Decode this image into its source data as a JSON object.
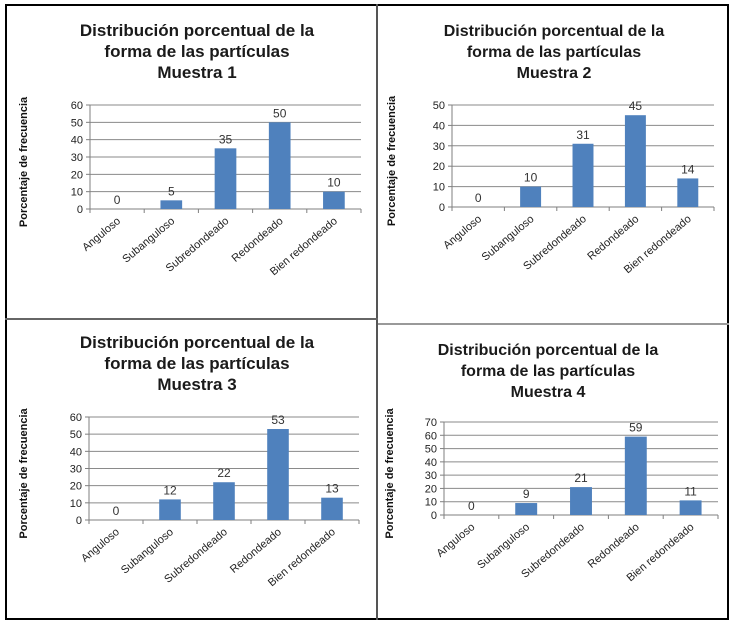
{
  "colors": {
    "bar": "#4f81bd",
    "grid": "#8a8a8a",
    "axis": "#7f7f7f"
  },
  "chart_data": [
    {
      "type": "bar",
      "title": [
        "Distribución porcentual de la",
        "forma de las partículas",
        "Muestra 1"
      ],
      "ylabel": "Porcentaje de frecuencia",
      "categories": [
        "Anguloso",
        "Subanguloso",
        "Subredondeado",
        "Redondeado",
        "Bien redondeado"
      ],
      "values": [
        0,
        5,
        35,
        50,
        10
      ],
      "yticks": [
        0,
        10,
        20,
        30,
        40,
        50,
        60
      ],
      "ylim": [
        0,
        60
      ],
      "grid": true
    },
    {
      "type": "bar",
      "title": [
        "Distribución porcentual de la",
        "forma de las partículas",
        "Muestra 2"
      ],
      "ylabel": "Porcentaje de frecuencia",
      "categories": [
        "Anguloso",
        "Subanguloso",
        "Subredondeado",
        "Redondeado",
        "Bien redondeado"
      ],
      "values": [
        0,
        10,
        31,
        45,
        14
      ],
      "yticks": [
        0,
        10,
        20,
        30,
        40,
        50
      ],
      "ylim": [
        0,
        50
      ],
      "grid": true
    },
    {
      "type": "bar",
      "title": [
        "Distribución porcentual de la",
        "forma de las partículas",
        "Muestra 3"
      ],
      "ylabel": "Porcentaje de frecuencia",
      "categories": [
        "Anguloso",
        "Subanguloso",
        "Subredondeado",
        "Redondeado",
        "Bien redondeado"
      ],
      "values": [
        0,
        12,
        22,
        53,
        13
      ],
      "yticks": [
        0,
        10,
        20,
        30,
        40,
        50,
        60
      ],
      "ylim": [
        0,
        60
      ],
      "grid": true
    },
    {
      "type": "bar",
      "title": [
        "Distribución porcentual de la",
        "forma de las partículas",
        "Muestra 4"
      ],
      "ylabel": "Porcentaje de frecuencia",
      "categories": [
        "Anguloso",
        "Subanguloso",
        "Subredondeado",
        "Redondeado",
        "Bien redondeado"
      ],
      "values": [
        0,
        9,
        21,
        59,
        11
      ],
      "yticks": [
        0,
        10,
        20,
        30,
        40,
        50,
        60,
        70
      ],
      "ylim": [
        0,
        70
      ],
      "grid": true
    }
  ]
}
